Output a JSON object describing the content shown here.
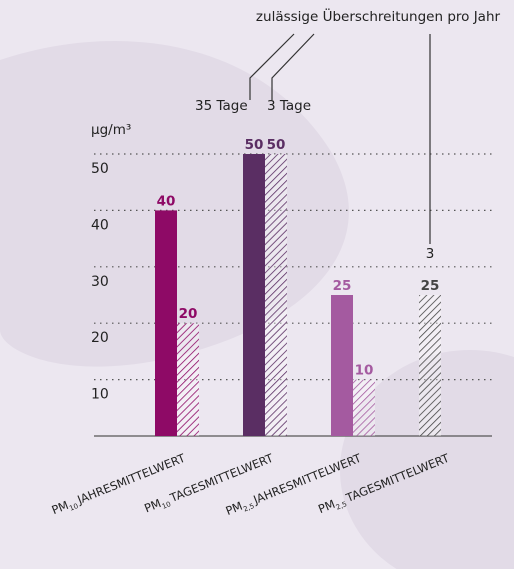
{
  "chart_data": {
    "type": "bar",
    "ylabel": "µg/m³",
    "ylim": [
      0,
      50
    ],
    "yticks": [
      10,
      20,
      30,
      40,
      50
    ],
    "grid": true,
    "categories": [
      {
        "pm": "PM",
        "sub": "10",
        "label": "JAHRESMITTELWERT"
      },
      {
        "pm": "PM",
        "sub": "10",
        "label": "TAGESMITTELWERT"
      },
      {
        "pm": "PM",
        "sub": "2,5",
        "label": "JAHRESMITTELWERT"
      },
      {
        "pm": "PM",
        "sub": "2,5",
        "label": "TAGESMITTELWERT"
      }
    ],
    "bars": [
      {
        "category": 0,
        "style": "solid",
        "value": 40,
        "label": "40",
        "color": "#8e0a66"
      },
      {
        "category": 0,
        "style": "hatched",
        "value": 20,
        "label": "20",
        "color": "#8e0a66"
      },
      {
        "category": 1,
        "style": "solid",
        "value": 50,
        "label": "50",
        "color": "#5a2e63"
      },
      {
        "category": 1,
        "style": "hatched",
        "value": 50,
        "label": "50",
        "color": "#5a2e63"
      },
      {
        "category": 2,
        "style": "solid",
        "value": 25,
        "label": "25",
        "color": "#a45aa0"
      },
      {
        "category": 2,
        "style": "hatched",
        "value": 10,
        "label": "10",
        "color": "#a45aa0"
      },
      {
        "category": 3,
        "style": "hatched",
        "value": 25,
        "label": "25",
        "color": "#444444"
      }
    ],
    "annotations": {
      "title": "zulässige Überschreitungen pro Jahr",
      "days_35": "35 Tage",
      "days_3": "3 Tage",
      "count_3": "3"
    }
  },
  "colors": {
    "background": "#ece7f0",
    "blob": "#e2dbe7",
    "axis": "#555555",
    "text": "#222222"
  }
}
